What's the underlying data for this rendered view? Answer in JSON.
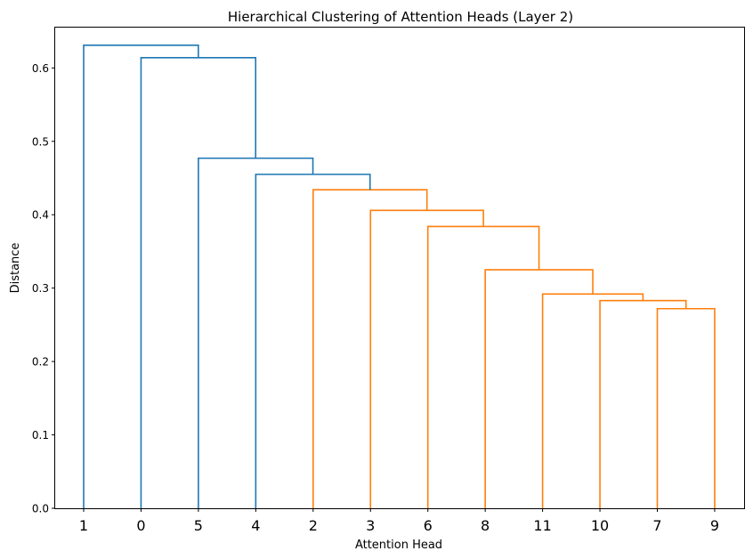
{
  "chart_data": {
    "type": "dendrogram",
    "title": "Hierarchical Clustering of Attention Heads (Layer 2)",
    "xlabel": "Attention Head",
    "ylabel": "Distance",
    "ylim": [
      0,
      0.655
    ],
    "yticks": [
      "0.0",
      "0.1",
      "0.2",
      "0.3",
      "0.4",
      "0.5",
      "0.6"
    ],
    "ytick_values": [
      0.0,
      0.1,
      0.2,
      0.3,
      0.4,
      0.5,
      0.6
    ],
    "leaves": [
      "1",
      "0",
      "5",
      "4",
      "2",
      "3",
      "6",
      "8",
      "11",
      "10",
      "7",
      "9"
    ],
    "grid": false,
    "colors": {
      "cluster_a": "#1f77b4",
      "cluster_b": "#ff7f0e",
      "axis": "#000000"
    },
    "links": [
      {
        "left": "L10",
        "right": "L11",
        "height": 0.272,
        "color": "cluster_b"
      },
      {
        "left": "L9",
        "right": "N0",
        "height": 0.283,
        "color": "cluster_b"
      },
      {
        "left": "L8",
        "right": "N1",
        "height": 0.292,
        "color": "cluster_b"
      },
      {
        "left": "L7",
        "right": "N2",
        "height": 0.325,
        "color": "cluster_b"
      },
      {
        "left": "L6",
        "right": "N3",
        "height": 0.384,
        "color": "cluster_b"
      },
      {
        "left": "L5",
        "right": "N4",
        "height": 0.406,
        "color": "cluster_b"
      },
      {
        "left": "L4",
        "right": "N5",
        "height": 0.434,
        "color": "cluster_b"
      },
      {
        "left": "L3",
        "right": "N6",
        "height": 0.455,
        "color": "cluster_a"
      },
      {
        "left": "L2",
        "right": "N7",
        "height": 0.477,
        "color": "cluster_a"
      },
      {
        "left": "L1",
        "right": "N8",
        "height": 0.614,
        "color": "cluster_a"
      },
      {
        "left": "L0",
        "right": "N9",
        "height": 0.631,
        "color": "cluster_a"
      }
    ]
  }
}
